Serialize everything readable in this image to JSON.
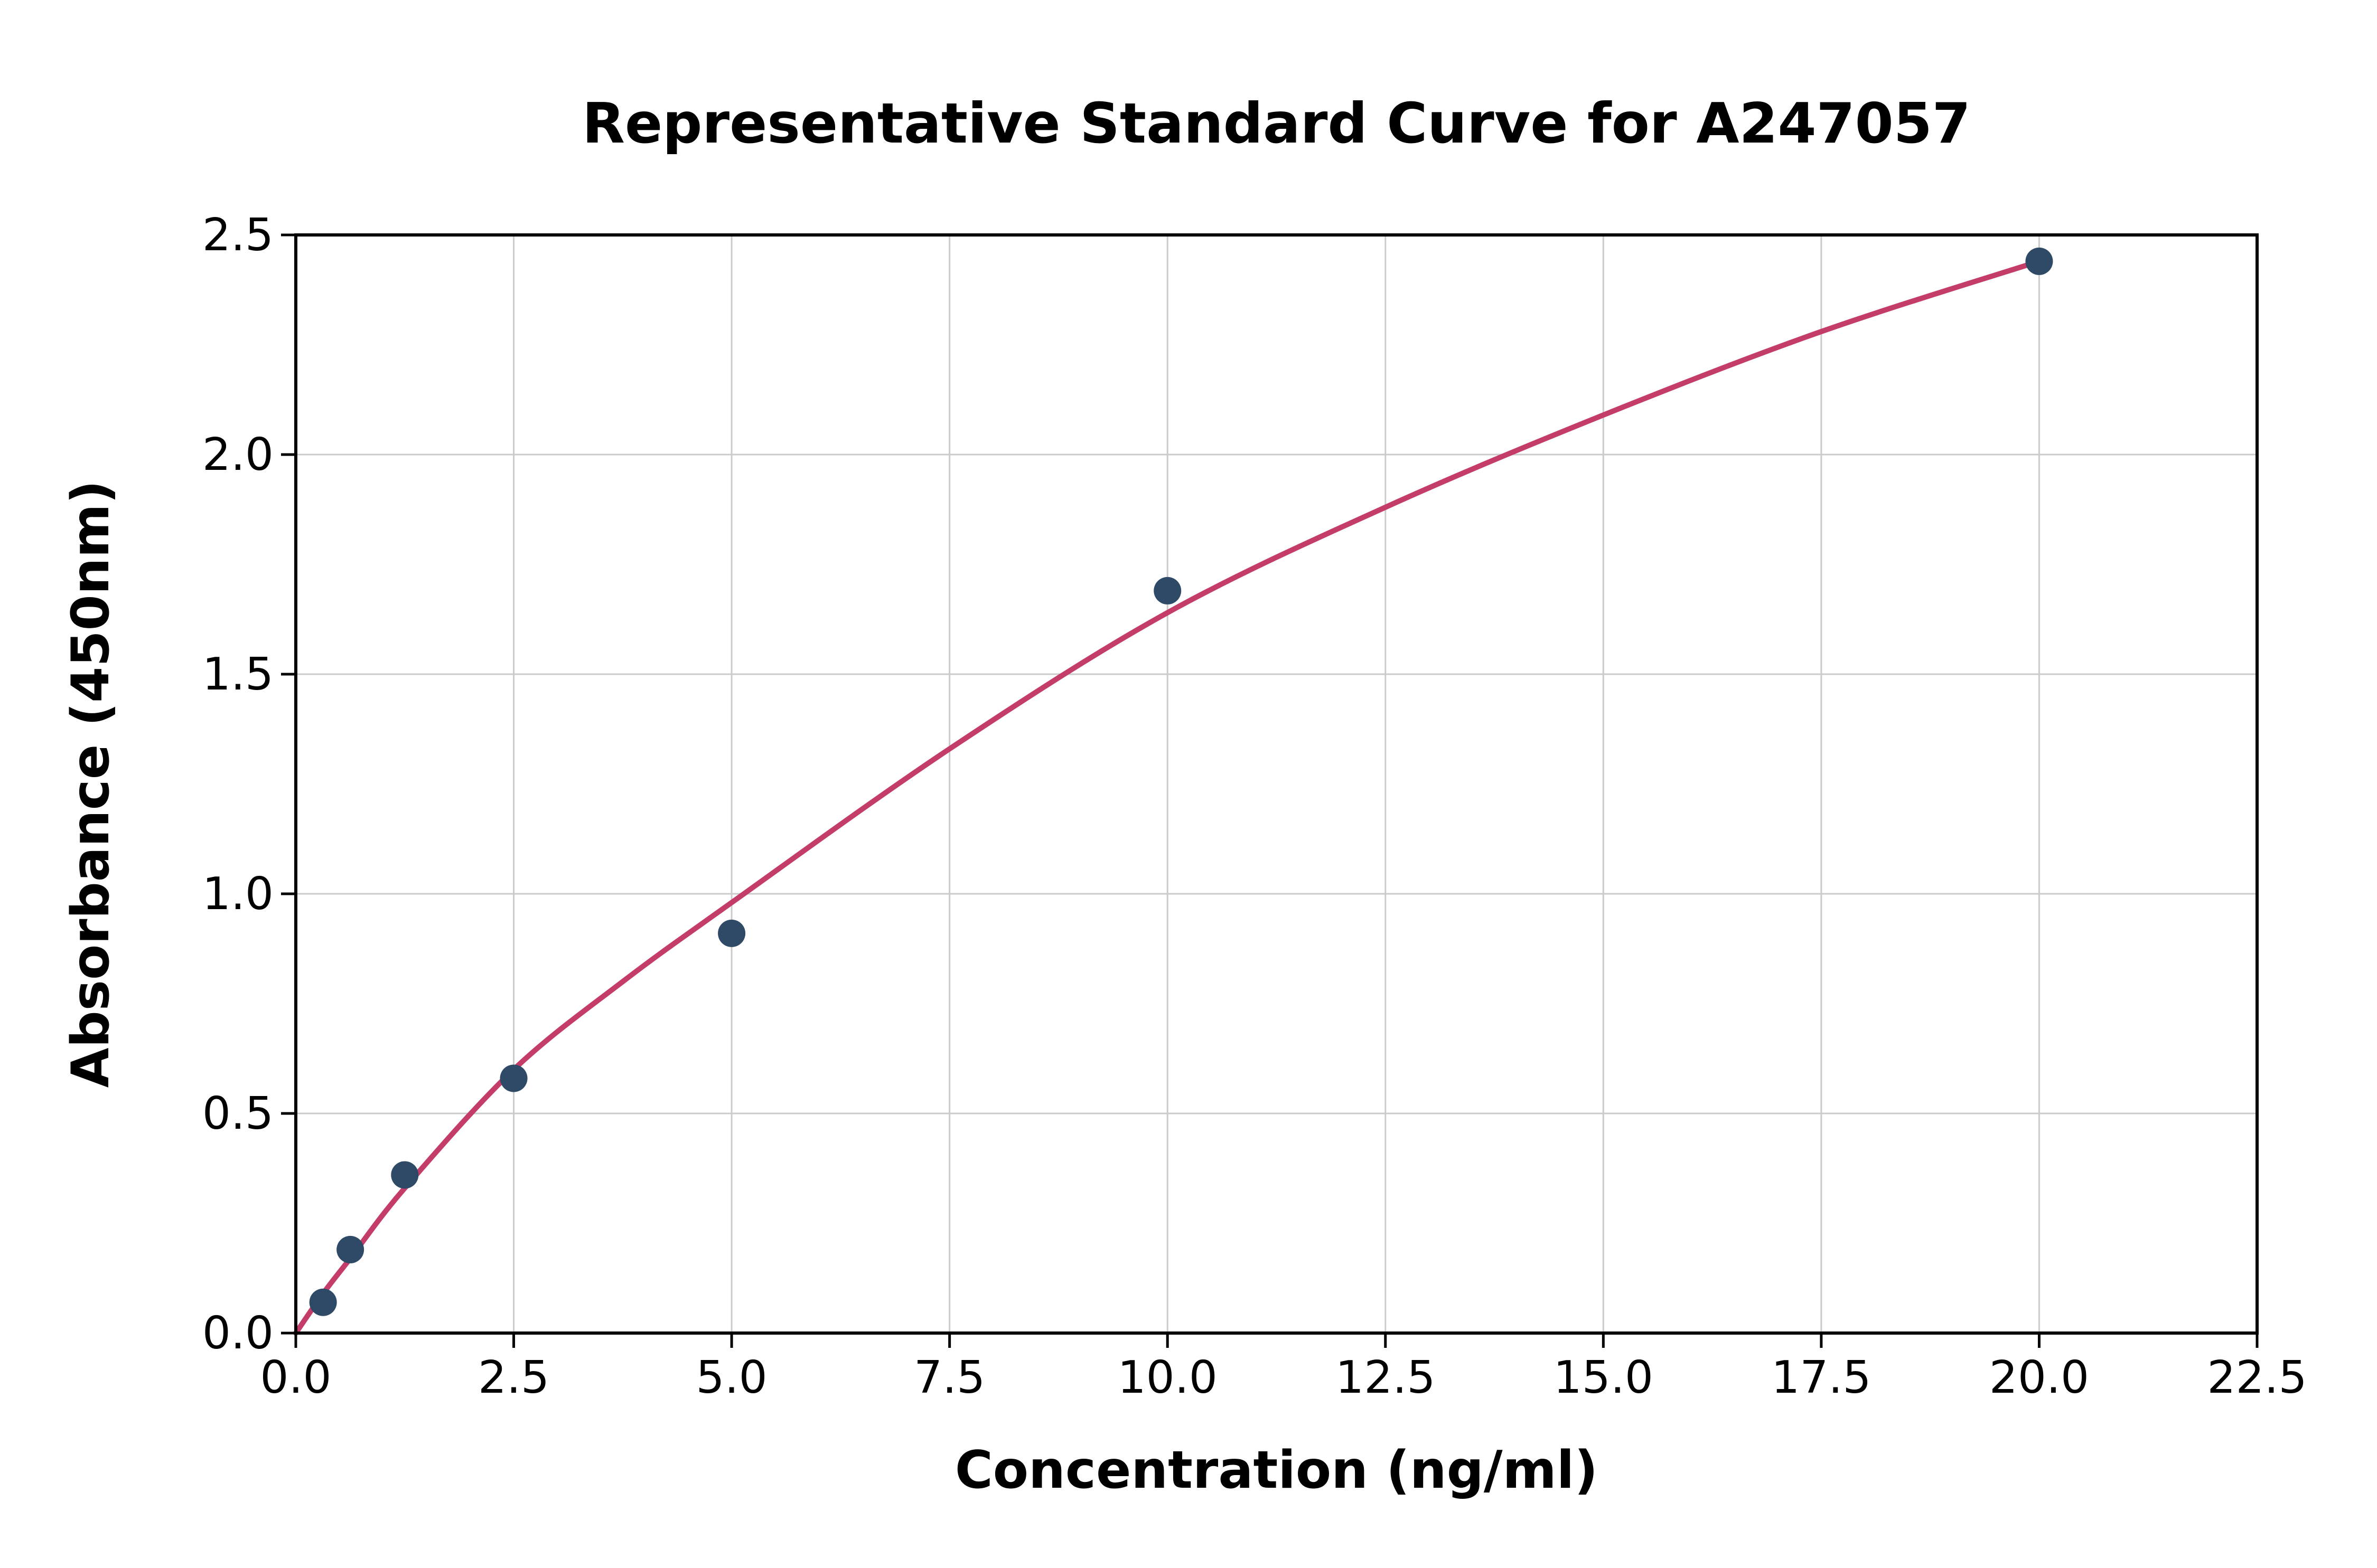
{
  "figure": {
    "kind": "elisa-standard-curve-plot"
  },
  "chart_data": {
    "type": "scatter",
    "title": "Representative Standard Curve for A247057",
    "xlabel": "Concentration (ng/ml)",
    "ylabel": "Absorbance (450nm)",
    "xlim": [
      0,
      22.5
    ],
    "ylim": [
      0,
      2.5
    ],
    "grid": true,
    "legend_position": "none",
    "x_ticks": {
      "values": [
        0,
        2.5,
        5,
        7.5,
        10,
        12.5,
        15,
        17.5,
        20,
        22.5
      ],
      "labels": [
        "0.0",
        "2.5",
        "5.0",
        "7.5",
        "10.0",
        "12.5",
        "15.0",
        "17.5",
        "20.0",
        "22.5"
      ]
    },
    "y_ticks": {
      "values": [
        0,
        0.5,
        1,
        1.5,
        2,
        2.5
      ],
      "labels": [
        "0.0",
        "0.5",
        "1.0",
        "1.5",
        "2.0",
        "2.5"
      ]
    },
    "series": [
      {
        "name": "standard-points",
        "type": "scatter",
        "color": "#2e4a66",
        "points": [
          [
            0.313,
            0.07
          ],
          [
            0.625,
            0.19
          ],
          [
            1.25,
            0.36
          ],
          [
            2.5,
            0.58
          ],
          [
            5.0,
            0.91
          ],
          [
            10.0,
            1.69
          ],
          [
            20.0,
            2.44
          ]
        ]
      },
      {
        "name": "fitted-curve",
        "type": "line",
        "color": "#c43d69",
        "points": [
          [
            0,
            0.0
          ],
          [
            0.313,
            0.09
          ],
          [
            0.625,
            0.17
          ],
          [
            1.25,
            0.33
          ],
          [
            2.5,
            0.6
          ],
          [
            3.75,
            0.8
          ],
          [
            5.0,
            0.98
          ],
          [
            7.5,
            1.33
          ],
          [
            10.0,
            1.64
          ],
          [
            12.5,
            1.88
          ],
          [
            15.0,
            2.09
          ],
          [
            17.5,
            2.28
          ],
          [
            20.0,
            2.44
          ]
        ]
      }
    ],
    "colors": {
      "grid": "#cbcbcb",
      "axis": "#000000",
      "background": "#ffffff",
      "points": "#2e4a66",
      "curve": "#c43d69"
    }
  }
}
